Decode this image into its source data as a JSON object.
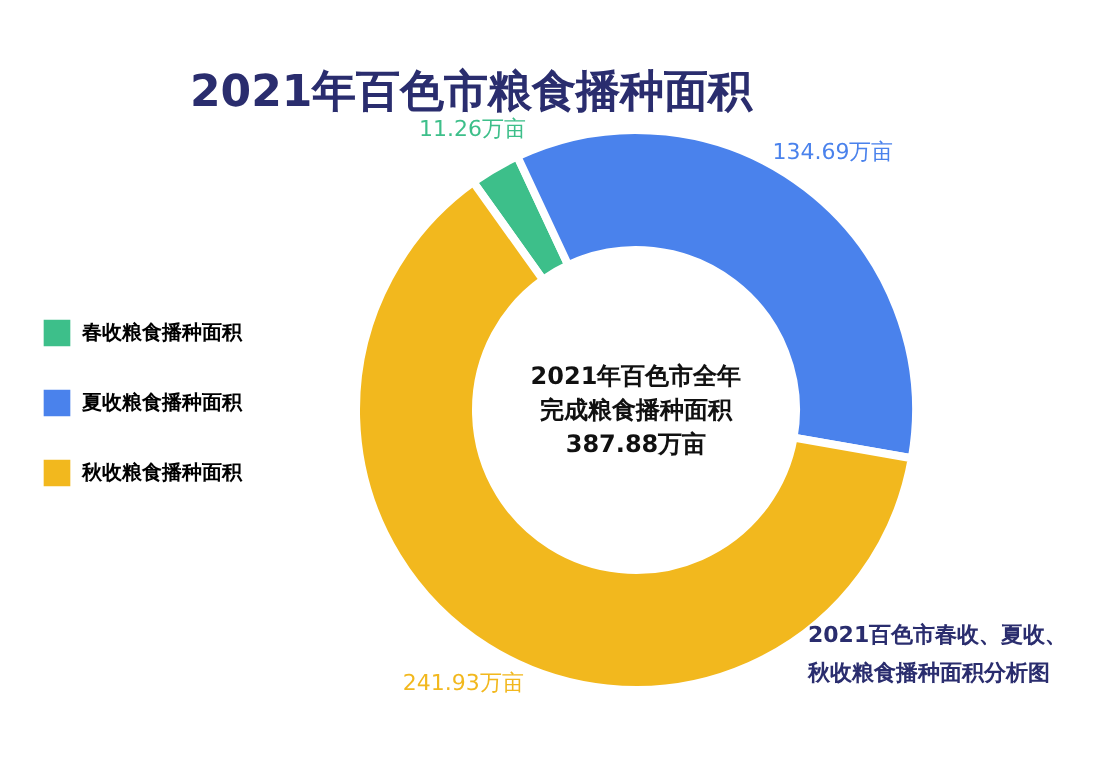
{
  "chart_data": {
    "type": "donut",
    "title": "2021年百色市粮食播种面积",
    "categories": [
      "春收粮食播种面积",
      "夏收粮食播种面积",
      "秋收粮食播种面积"
    ],
    "values": [
      11.26,
      134.69,
      241.93
    ],
    "colors": [
      "#3dbf8a",
      "#4a82ec",
      "#f2b81e"
    ],
    "value_labels": [
      "11.26万亩",
      "134.69万亩",
      "241.93万亩"
    ],
    "legend": "left",
    "annotations": [
      "2021年百色市全年",
      "完成粮食播种面积",
      "387.88万亩",
      "2021百色市春收、夏收、",
      "秋收粮食播种面积分析图"
    ]
  }
}
